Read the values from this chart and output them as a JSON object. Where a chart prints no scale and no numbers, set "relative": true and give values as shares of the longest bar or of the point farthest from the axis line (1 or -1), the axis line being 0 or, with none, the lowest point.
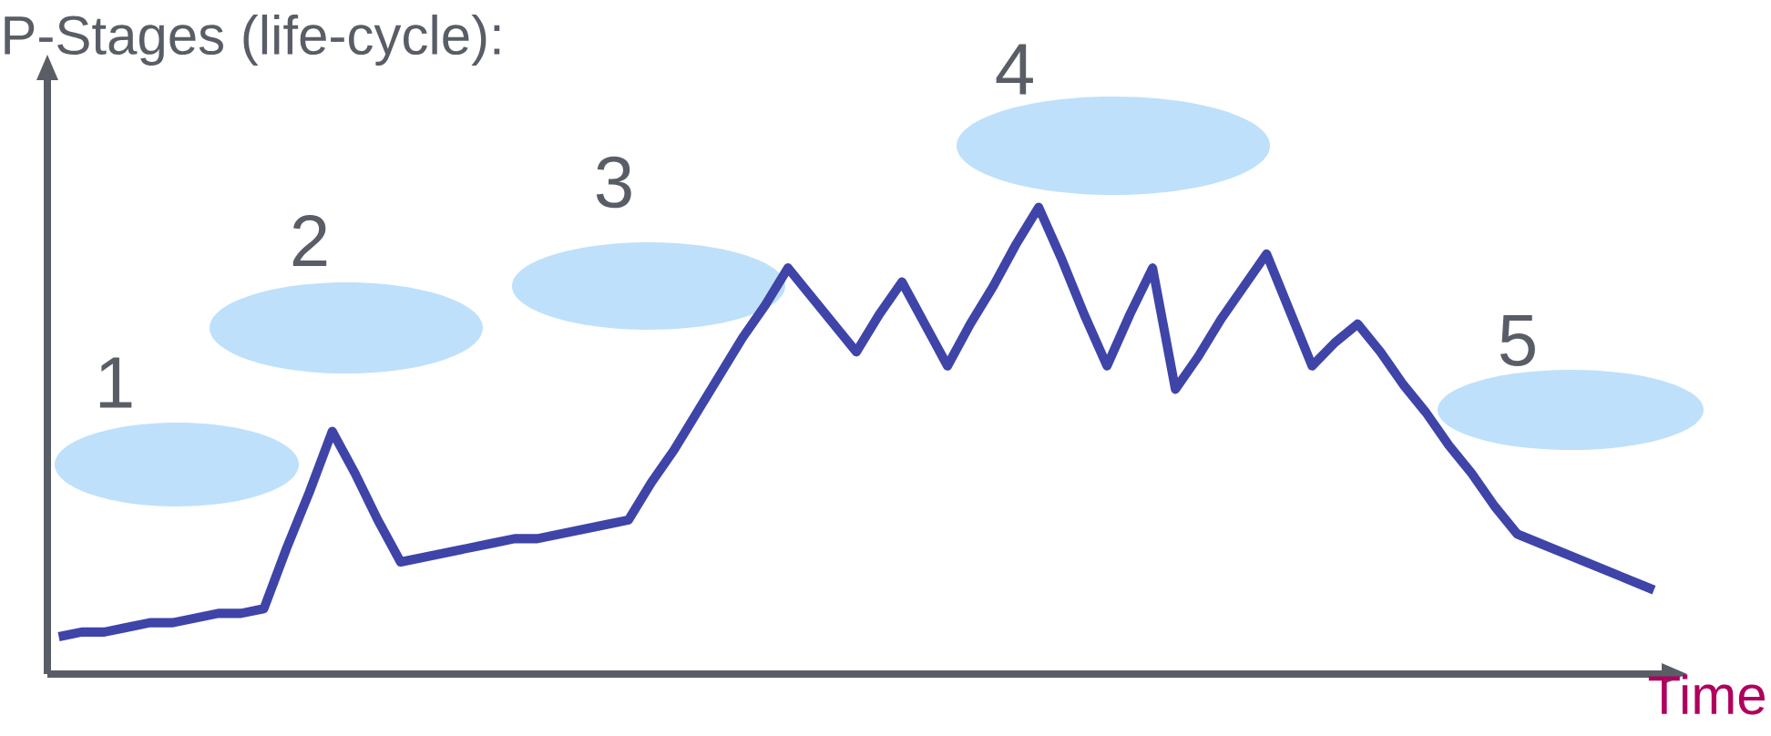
{
  "chart_data": {
    "type": "line",
    "title": "P-Stages (life-cycle):",
    "xlabel": "Time",
    "relative": true,
    "marker": "none",
    "line_style": "solid",
    "annotations": [
      "1",
      "2",
      "3",
      "4",
      "5"
    ],
    "categories": [
      null,
      null,
      null,
      null,
      null,
      null,
      null,
      null,
      null,
      null,
      null,
      null,
      null,
      null,
      null,
      null,
      null,
      null,
      null,
      null,
      null,
      null,
      null,
      null,
      null,
      null,
      null,
      null,
      null,
      null,
      null,
      null,
      null,
      null,
      null,
      null,
      null,
      null,
      null,
      null,
      null,
      null,
      null,
      null,
      null,
      null,
      null,
      null,
      null,
      null,
      null,
      null,
      null,
      null,
      null,
      null,
      null,
      null,
      null,
      null,
      null,
      null,
      null,
      null,
      null,
      null,
      null,
      null,
      null,
      null,
      null
    ],
    "series": [
      {
        "color": "#3f44a8",
        "values": [
          0.08,
          0.09,
          0.09,
          0.1,
          0.11,
          0.11,
          0.12,
          0.13,
          0.13,
          0.14,
          0.27,
          0.39,
          0.52,
          0.43,
          0.33,
          0.24,
          0.25,
          0.26,
          0.27,
          0.28,
          0.29,
          0.29,
          0.3,
          0.31,
          0.32,
          0.33,
          0.41,
          0.48,
          0.56,
          0.64,
          0.72,
          0.79,
          0.87,
          0.81,
          0.75,
          0.69,
          0.77,
          0.84,
          0.75,
          0.66,
          0.75,
          0.83,
          0.92,
          1,
          0.89,
          0.77,
          0.66,
          0.77,
          0.87,
          0.61,
          0.68,
          0.76,
          0.83,
          0.9,
          0.78,
          0.66,
          0.71,
          0.75,
          0.69,
          0.62,
          0.56,
          0.49,
          0.43,
          0.36,
          0.3,
          0.28,
          0.26,
          0.24,
          0.22,
          0.2,
          0.18
        ]
      }
    ]
  }
}
